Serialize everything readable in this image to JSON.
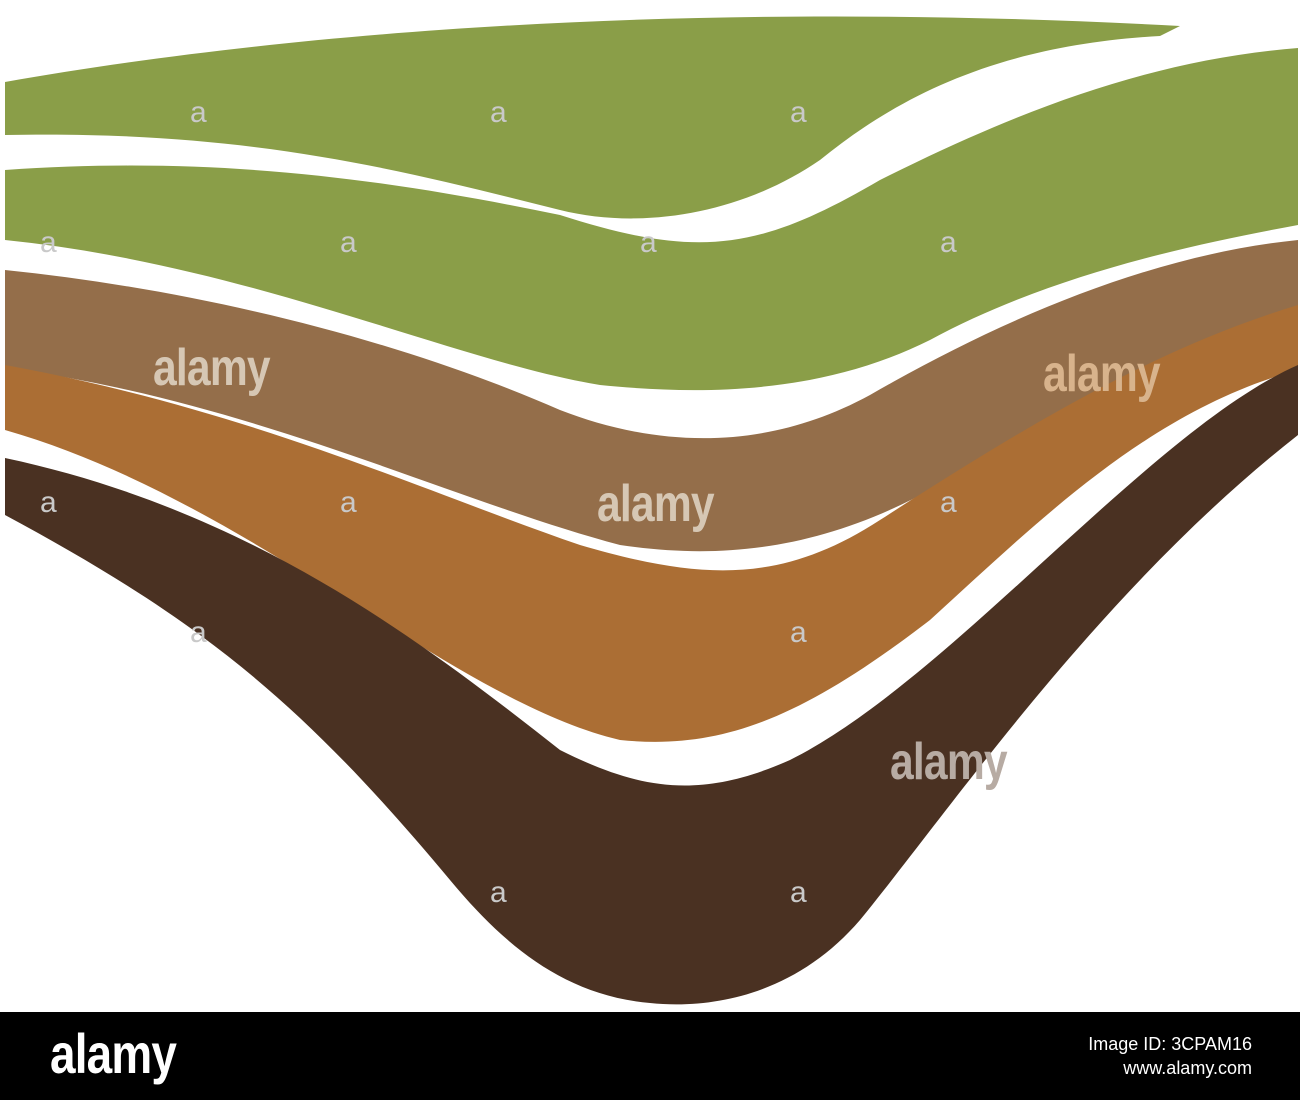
{
  "illustration": {
    "layers": [
      {
        "name": "grass-top-layer",
        "color": "#8a9e48"
      },
      {
        "name": "grass-second-layer",
        "color": "#8a9e48"
      },
      {
        "name": "loam-layer",
        "color": "#946e4a"
      },
      {
        "name": "clay-layer",
        "color": "#ab6e34"
      },
      {
        "name": "bedrock-layer",
        "color": "#4a3122"
      }
    ],
    "background_color": "#ffffff"
  },
  "watermark": {
    "word": "alamy",
    "letter": "a"
  },
  "footer": {
    "logo": "alamy",
    "image_id_label": "Image ID: 3CPAM16",
    "url": "www.alamy.com"
  }
}
